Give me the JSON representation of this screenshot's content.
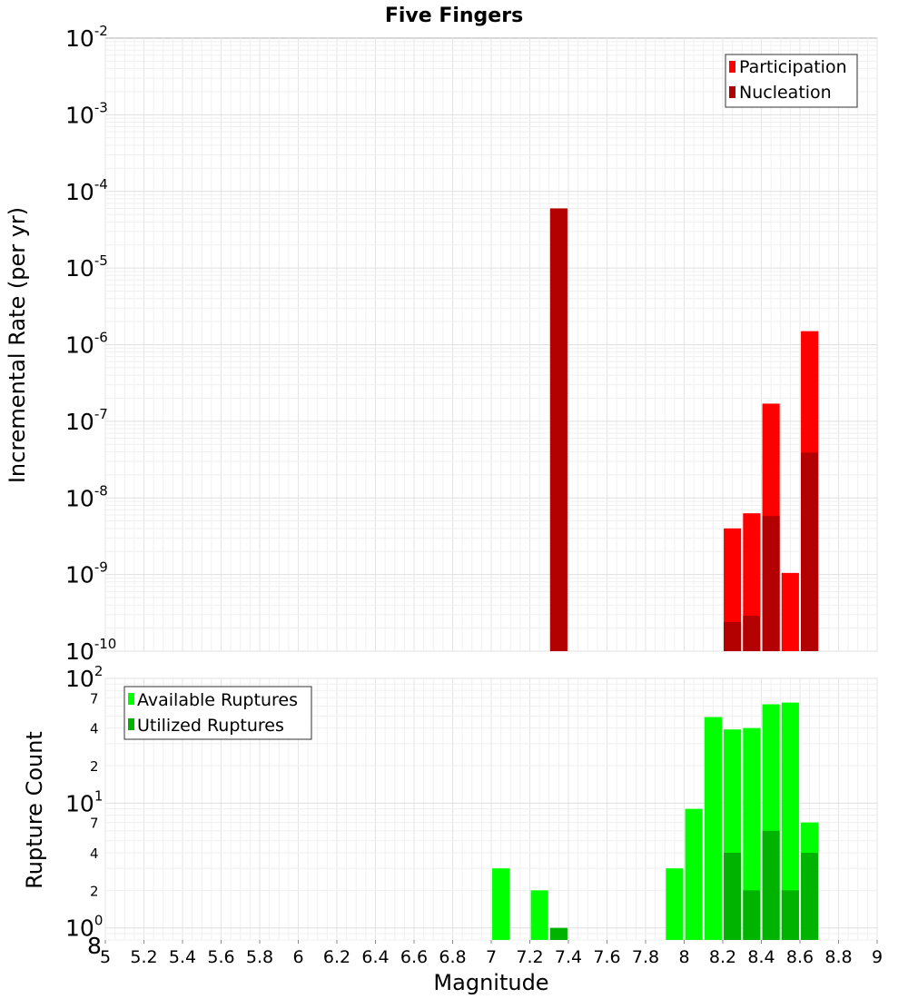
{
  "title": "Five Fingers",
  "colors": {
    "participation": "#ff0000",
    "nucleation": "#b30000",
    "available": "#00ff00",
    "utilized": "#00b300"
  },
  "chart_data": [
    {
      "type": "bar",
      "ylabel": "Incremental Rate (per yr)",
      "xlabel": "",
      "xlim": [
        5,
        9
      ],
      "ylim": [
        1e-10,
        0.01
      ],
      "yscale": "log",
      "bar_width": 0.09,
      "legend_position": "top-right",
      "y_ticks": [
        {
          "base": "10",
          "exp": "-2",
          "value": 0.01
        },
        {
          "base": "10",
          "exp": "-3",
          "value": 0.001
        },
        {
          "base": "10",
          "exp": "-4",
          "value": 0.0001
        },
        {
          "base": "10",
          "exp": "-5",
          "value": 1e-05
        },
        {
          "base": "10",
          "exp": "-6",
          "value": 1e-06
        },
        {
          "base": "10",
          "exp": "-7",
          "value": 1e-07
        },
        {
          "base": "10",
          "exp": "-8",
          "value": 1e-08
        },
        {
          "base": "10",
          "exp": "-9",
          "value": 1e-09
        },
        {
          "base": "10",
          "exp": "-10",
          "value": 1e-10
        }
      ],
      "series": [
        {
          "name": "Participation",
          "color": "#ff0000",
          "x": [
            8.25,
            8.35,
            8.45,
            8.55,
            8.65
          ],
          "values": [
            4e-09,
            6.3e-09,
            1.7e-07,
            1.05e-09,
            1.5e-06
          ]
        },
        {
          "name": "Nucleation",
          "color": "#b30000",
          "x": [
            7.35,
            8.25,
            8.35,
            8.45,
            8.65
          ],
          "values": [
            6e-05,
            2.4e-10,
            2.9e-10,
            5.8e-09,
            3.9e-08
          ]
        }
      ]
    },
    {
      "type": "bar",
      "ylabel": "Rupture Count",
      "xlabel": "Magnitude",
      "xlim": [
        5,
        9
      ],
      "ylim": [
        0.8,
        100
      ],
      "yscale": "log",
      "bar_width": 0.09,
      "legend_position": "top-left",
      "x_ticks": [
        "5",
        "5.2",
        "5.4",
        "5.6",
        "5.8",
        "6",
        "6.2",
        "6.4",
        "6.6",
        "6.8",
        "7",
        "7.2",
        "7.4",
        "7.6",
        "7.8",
        "8",
        "8.2",
        "8.4",
        "8.6",
        "8.8",
        "9"
      ],
      "y_ticks": [
        {
          "base": "10",
          "exp": "2",
          "value": 100
        },
        {
          "base": "10",
          "exp": "1",
          "value": 10
        },
        {
          "base": "10",
          "exp": "0",
          "value": 1
        }
      ],
      "y_minor_labels": [
        {
          "label": "7",
          "value": 70
        },
        {
          "label": "4",
          "value": 40
        },
        {
          "label": "2",
          "value": 20
        },
        {
          "label": "7",
          "value": 7
        },
        {
          "label": "4",
          "value": 4
        },
        {
          "label": "2",
          "value": 2
        },
        {
          "label": "8",
          "value": 0.8
        }
      ],
      "series": [
        {
          "name": "Available Ruptures",
          "color": "#00ff00",
          "x": [
            7.05,
            7.25,
            7.95,
            8.05,
            8.15,
            8.25,
            8.35,
            8.45,
            8.55,
            8.65
          ],
          "values": [
            3,
            2,
            3,
            9,
            49,
            39,
            40,
            62,
            64,
            7
          ]
        },
        {
          "name": "Utilized Ruptures",
          "color": "#00b300",
          "x": [
            7.35,
            8.25,
            8.35,
            8.45,
            8.55,
            8.65
          ],
          "values": [
            1,
            4,
            2,
            6,
            2,
            4
          ]
        }
      ]
    }
  ]
}
